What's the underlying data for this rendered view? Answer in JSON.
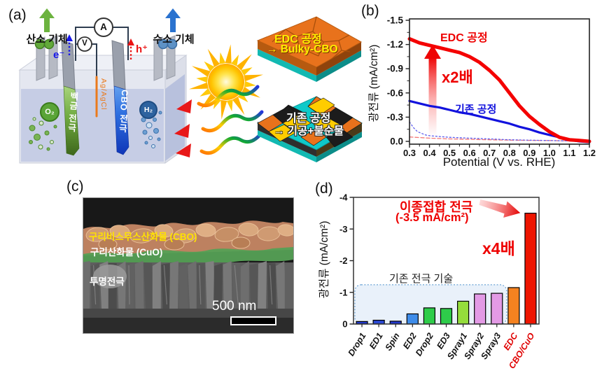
{
  "panel_a": {
    "label": "(a)",
    "oxygen_gas": "산소 기체",
    "hydrogen_gas": "수소 기체",
    "ammeter": "A",
    "voltmeter": "V",
    "electron": "e⁻",
    "hole": "h⁺",
    "reference_electrode": "Ag/AgCl",
    "o2_badge": "O₂",
    "h2_badge": "H₂",
    "pt_electrode": "백금 전극",
    "cbo_electrode": "CBO 전극",
    "edc_tile": {
      "line1": "EDC 공정",
      "line2": "→ Bulky-CBO"
    },
    "conv_tile": {
      "line1": "기존 공정",
      "line2": "→ 기공+불순물"
    }
  },
  "panel_b": {
    "label": "(b)",
    "multiplier": "x2배"
  },
  "panel_c": {
    "label": "(c)",
    "layer_cbo": "구리비스무스산화물 (CBO)",
    "layer_cuo": "구리산화물 (CuO)",
    "layer_substrate": "투명전극",
    "scale_bar": "500 nm"
  },
  "panel_d": {
    "label": "(d)",
    "annotation_line1": "이종접합 전극",
    "annotation_line2": "(-3.5 mA/cm²)",
    "multiplier": "x4배"
  },
  "chart_data": [
    {
      "type": "line",
      "panel": "b",
      "title": "",
      "xlabel": "Potential (V vs. RHE)",
      "ylabel": "광전류 (mA/cm²)",
      "xlim": [
        0.3,
        1.2
      ],
      "ylim": [
        0,
        -1.5
      ],
      "x_ticks": [
        0.3,
        0.4,
        0.5,
        0.6,
        0.7,
        0.8,
        0.9,
        1.0,
        1.1,
        1.2
      ],
      "y_ticks": [
        0,
        -0.3,
        -0.6,
        -0.9,
        -1.2,
        -1.5
      ],
      "grid": false,
      "legend_position": "inline-annotations",
      "series": [
        {
          "name": "EDC 공정",
          "color": "#f40000",
          "width": 5,
          "dash": "",
          "x": [
            0.3,
            0.35,
            0.4,
            0.45,
            0.5,
            0.55,
            0.6,
            0.65,
            0.7,
            0.75,
            0.8,
            0.85,
            0.9,
            0.95,
            1.0,
            1.05,
            1.1,
            1.15,
            1.2
          ],
          "y": [
            -1.27,
            -1.22,
            -1.19,
            -1.16,
            -1.13,
            -1.1,
            -1.05,
            -0.98,
            -0.88,
            -0.76,
            -0.6,
            -0.44,
            -0.31,
            -0.21,
            -0.12,
            -0.05,
            -0.02,
            -0.01,
            0
          ]
        },
        {
          "name": "기존 공정",
          "color": "#1212dd",
          "width": 3.2,
          "dash": "",
          "x": [
            0.3,
            0.35,
            0.4,
            0.45,
            0.5,
            0.55,
            0.6,
            0.65,
            0.7,
            0.75,
            0.8,
            0.85,
            0.9,
            0.95,
            1.0,
            1.05,
            1.1,
            1.15,
            1.2
          ],
          "y": [
            -0.5,
            -0.47,
            -0.44,
            -0.42,
            -0.39,
            -0.36,
            -0.34,
            -0.31,
            -0.28,
            -0.25,
            -0.22,
            -0.18,
            -0.15,
            -0.11,
            -0.08,
            -0.05,
            -0.02,
            0,
            0.01
          ]
        },
        {
          "name": "",
          "color": "#5b5bee",
          "width": 1.3,
          "dash": "2 3",
          "x": [
            0.3,
            0.32,
            0.34,
            0.36,
            0.38,
            0.4,
            0.45,
            0.5,
            0.55,
            0.6,
            0.7,
            0.8,
            0.9,
            1.0,
            1.1,
            1.2
          ],
          "y": [
            -0.24,
            -0.17,
            -0.12,
            -0.1,
            -0.08,
            -0.07,
            -0.06,
            -0.05,
            -0.045,
            -0.04,
            -0.03,
            -0.02,
            -0.015,
            -0.01,
            -0.005,
            0
          ]
        },
        {
          "name": "",
          "color": "#f37777",
          "width": 1.3,
          "dash": "5 3",
          "x": [
            0.3,
            0.4,
            0.5,
            0.6,
            0.7,
            0.8,
            0.9,
            1.0,
            1.1,
            1.2
          ],
          "y": [
            -0.055,
            -0.04,
            -0.03,
            -0.025,
            -0.02,
            -0.015,
            -0.012,
            -0.01,
            -0.005,
            0
          ]
        }
      ]
    },
    {
      "type": "bar",
      "panel": "d",
      "title": "",
      "xlabel": "",
      "ylabel": "광전류 (mA/cm²)",
      "ylim": [
        0,
        -4
      ],
      "y_ticks": [
        0,
        -1,
        -2,
        -3,
        -4
      ],
      "grid": false,
      "categories": [
        "Drop1",
        "ED1",
        "Spin",
        "ED2",
        "Drop2",
        "ED3",
        "Spray1",
        "Spray2",
        "Spray3",
        "EDC",
        "CBO/CuO"
      ],
      "values": [
        -0.08,
        -0.12,
        -0.09,
        -0.32,
        -0.51,
        -0.49,
        -0.72,
        -0.95,
        -0.97,
        -1.15,
        -3.5
      ],
      "bar_colors": [
        "#2238cc",
        "#2b4ad6",
        "#2238cc",
        "#3e8ce9",
        "#2ecc4a",
        "#2ecc4a",
        "#95dd3c",
        "#e39ae5",
        "#e39ae5",
        "#f58220",
        "#ee1500"
      ],
      "label_colors": [
        "#111111",
        "#111111",
        "#111111",
        "#111111",
        "#111111",
        "#111111",
        "#111111",
        "#111111",
        "#111111",
        "#e00000",
        "#e00000"
      ],
      "region": {
        "label": "기존 전극 기술",
        "span_categories": [
          "Drop1",
          "Spray3"
        ],
        "top_value": -1.24
      }
    }
  ]
}
